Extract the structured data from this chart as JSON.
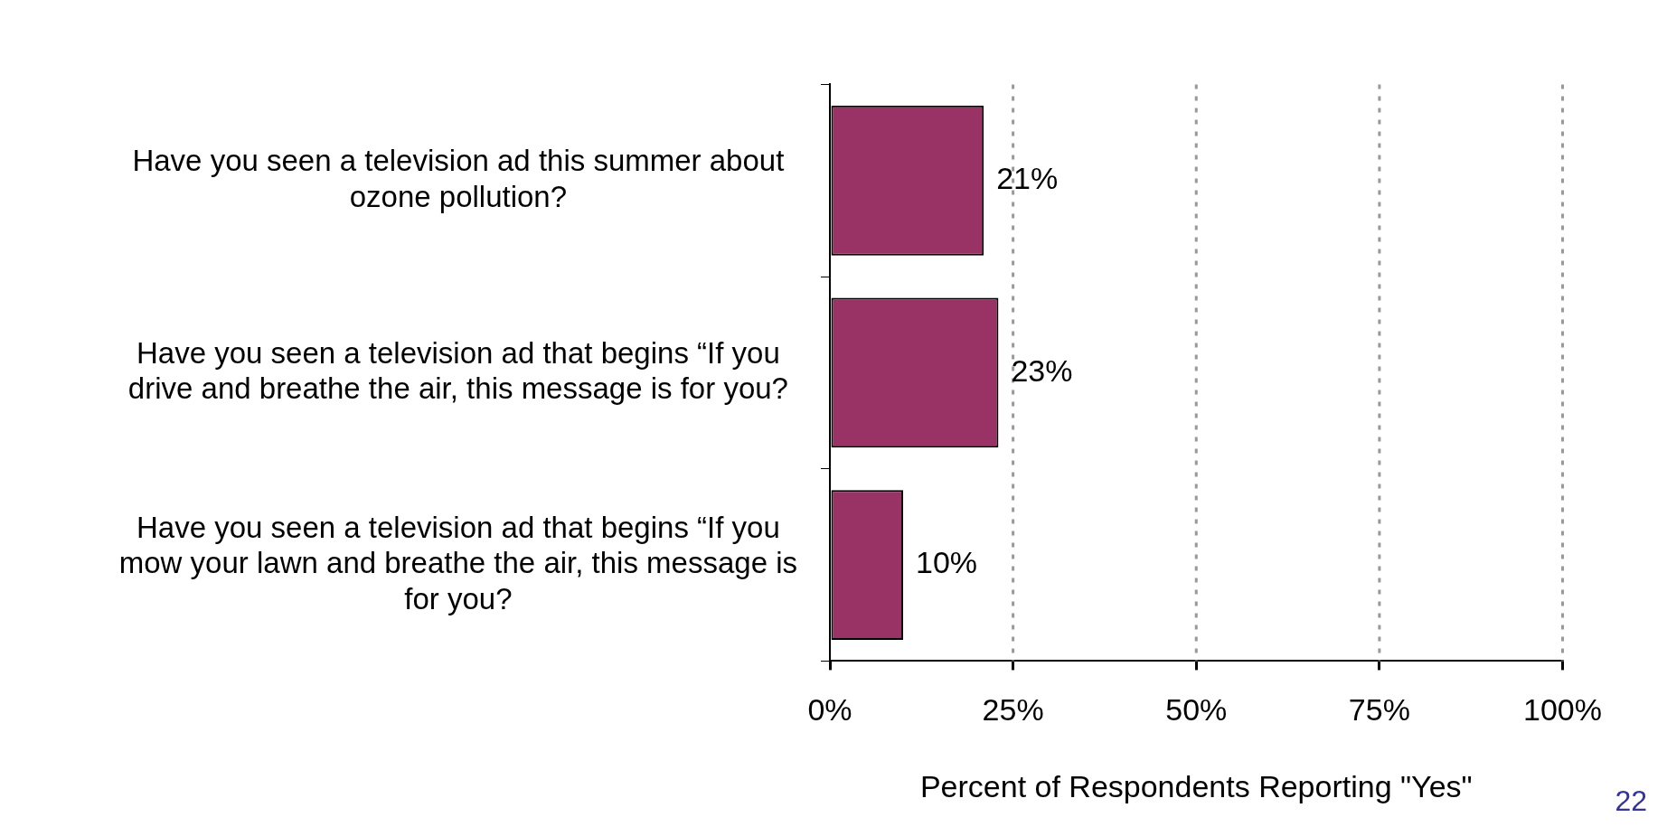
{
  "chart_data": {
    "type": "bar",
    "orientation": "horizontal",
    "categories": [
      "Have you seen a television ad this summer about ozone pollution?",
      "Have you seen a television ad that begins “If you drive and breathe the air, this message is for you?",
      "Have you seen a television ad that begins “If you mow your lawn and breathe the air, this message is for you?"
    ],
    "values": [
      21,
      23,
      10
    ],
    "color": "#993366",
    "value_labels": [
      "21%",
      "23%",
      "10%"
    ],
    "xlabel": "Percent of Respondents Reporting \"Yes\"",
    "xlim": [
      0,
      100
    ],
    "xticks": [
      {
        "value": 0,
        "label": "0%"
      },
      {
        "value": 25,
        "label": "25%"
      },
      {
        "value": 50,
        "label": "50%"
      },
      {
        "value": 75,
        "label": "75%"
      },
      {
        "value": 100,
        "label": "100%"
      }
    ],
    "grid": "x",
    "legend": false,
    "annotations": [
      "22"
    ]
  }
}
